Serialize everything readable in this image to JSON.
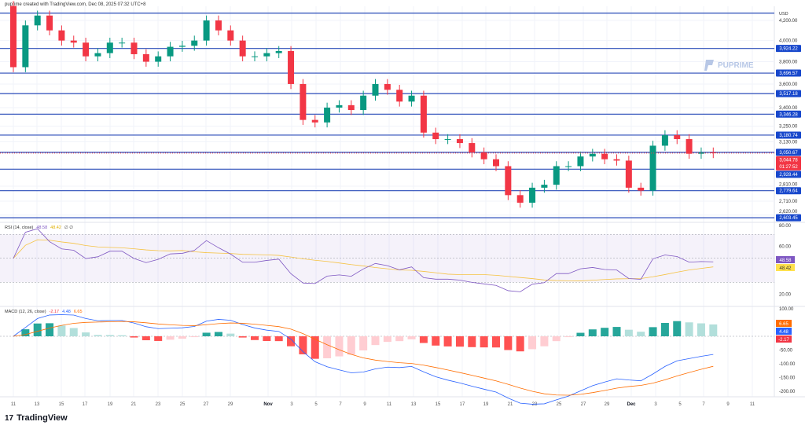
{
  "header": {
    "caption": "puprime created with TradingView.com, Dec 08, 2025 07:32 UTC+8"
  },
  "watermark": "PUPRIME",
  "footer": {
    "brand": "TradingView"
  },
  "colors": {
    "up": "#089981",
    "down": "#f23645",
    "level": "#2a4bb8",
    "rsi": "#7e57c2",
    "rsi_ma": "#f5c242",
    "macd": "#2962ff",
    "signal": "#ff6d00"
  },
  "chart_data": {
    "type": "candlestick",
    "currency": "USD",
    "x": [
      "11",
      "12",
      "13",
      "14",
      "15",
      "16",
      "17",
      "18",
      "19",
      "20",
      "21",
      "22",
      "23",
      "24",
      "25",
      "26",
      "27",
      "28",
      "29",
      "30",
      "31",
      "Nov",
      "2",
      "3",
      "4",
      "5",
      "6",
      "7",
      "8",
      "9",
      "10",
      "11",
      "12",
      "13",
      "14",
      "15",
      "16",
      "17",
      "18",
      "19",
      "20",
      "21",
      "22",
      "23",
      "24",
      "25",
      "26",
      "27",
      "28",
      "29",
      "30",
      "Dec",
      "2",
      "3",
      "4",
      "5",
      "6",
      "7",
      "8"
    ],
    "open_start": 4350,
    "close": [
      3750,
      4150,
      4250,
      4100,
      4000,
      3980,
      3850,
      3880,
      3980,
      3980,
      3870,
      3800,
      3850,
      3940,
      3950,
      4000,
      4200,
      4100,
      4000,
      3850,
      3850,
      3880,
      3900,
      3600,
      3300,
      3280,
      3400,
      3420,
      3380,
      3500,
      3600,
      3550,
      3450,
      3500,
      3200,
      3150,
      3150,
      3120,
      3050,
      3000,
      2950,
      2750,
      2700,
      2800,
      2820,
      2950,
      2950,
      3020,
      3040,
      3000,
      2990,
      2800,
      2780,
      3100,
      3180,
      3150,
      3040,
      3050,
      3044.78
    ],
    "price_ticks": [
      "4,200.00",
      "4,000.00",
      "3,800.00",
      "3,600.00",
      "3,400.00",
      "3,250.00",
      "3,130.00",
      "2,810.00",
      "2,710.00",
      "2,620.00"
    ],
    "price_tick_values": [
      4200,
      4000,
      3800,
      3600,
      3400,
      3250,
      3130,
      2810,
      2710,
      2620
    ],
    "levels": [
      {
        "value": 3924.22,
        "label": "3,924.22"
      },
      {
        "value": 3696.57,
        "label": "3,696.57"
      },
      {
        "value": 3517.18,
        "label": "3,517.18"
      },
      {
        "value": 3346.28,
        "label": "3,346.28"
      },
      {
        "value": 3180.74,
        "label": "3,180.74"
      },
      {
        "value": 3050.67,
        "label": "3,050.67"
      },
      {
        "value": 2928.44,
        "label": "2,928.44"
      },
      {
        "value": 2779.64,
        "label": "2,779.64"
      },
      {
        "value": 2603.45,
        "label": "2,603.45"
      }
    ],
    "top_level": 4275,
    "last_price": {
      "label": "3,044.78",
      "countdown": "01:27:52"
    },
    "x_ticks": [
      "11",
      "13",
      "15",
      "17",
      "19",
      "21",
      "23",
      "25",
      "27",
      "29",
      "Nov",
      "3",
      "5",
      "7",
      "9",
      "11",
      "13",
      "15",
      "17",
      "19",
      "21",
      "23",
      "25",
      "27",
      "29",
      "Dec",
      "3",
      "5",
      "7",
      "9",
      "11"
    ],
    "rsi": {
      "title": "RSI (14, close)",
      "value": "48.58",
      "ma": "48.42",
      "extra": "∅ ∅",
      "ticks": [
        "60.00",
        "20.00"
      ],
      "tick_values": [
        60,
        20
      ],
      "band": [
        30,
        70
      ],
      "top_label": "80.00"
    },
    "macd": {
      "title": "MACD (12, 26, close)",
      "hist": "-2.17",
      "macd": "4.48",
      "signal": "6.65",
      "ticks": [
        "100.00",
        "-50.00",
        "-100.00",
        "-150.00",
        "-200.00"
      ],
      "tick_values": [
        100,
        -50,
        -100,
        -150,
        -200
      ]
    }
  }
}
